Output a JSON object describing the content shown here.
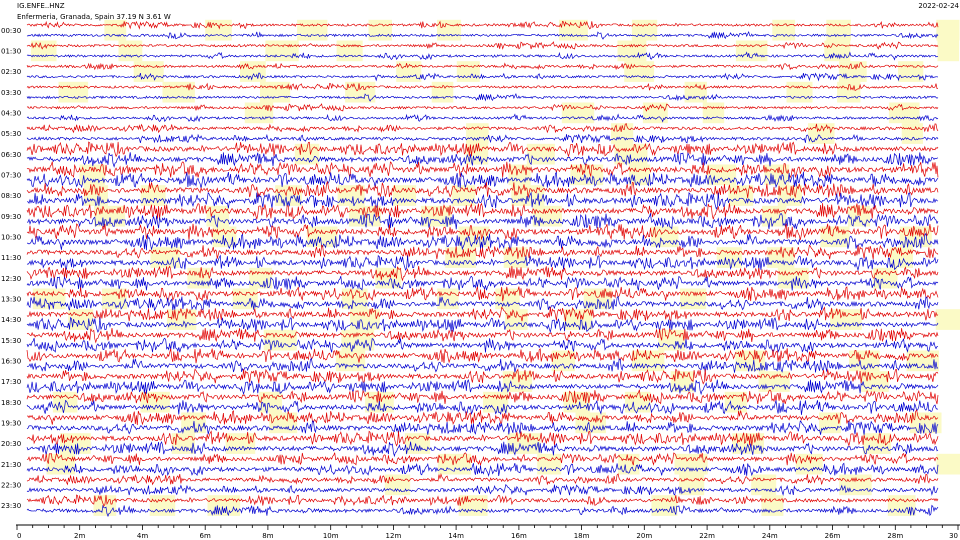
{
  "header": {
    "station": "IG.ENFE..HNZ",
    "location": "Enfermeria, Granada, Spain   37.19 N 3.61 W",
    "date": "2022-02-24"
  },
  "colors": {
    "trace_a": "#e00000",
    "trace_b": "#0000d0",
    "highlight": "#fbfac6"
  },
  "chart_data": {
    "type": "line",
    "title": "IG.ENFE..HNZ",
    "xlabel": "",
    "ylabel": "",
    "x_unit": "minutes",
    "xlim": [
      0,
      30
    ],
    "x_ticks": [
      "0",
      "2m",
      "4m",
      "6m",
      "8m",
      "10m",
      "12m",
      "14m",
      "16m",
      "18m",
      "20m",
      "22m",
      "24m",
      "26m",
      "28m",
      "30"
    ],
    "row_labels": [
      "00:30",
      "01:30",
      "02:30",
      "03:30",
      "04:30",
      "05:30",
      "06:30",
      "07:30",
      "08:30",
      "09:30",
      "10:30",
      "11:30",
      "12:30",
      "13:30",
      "14:30",
      "15:30",
      "16:30",
      "17:30",
      "18:30",
      "19:30",
      "20:30",
      "21:30",
      "22:30",
      "23:30"
    ],
    "traces_per_hour": 2,
    "trace_minutes": 30,
    "series": [
      {
        "color": "red"
      },
      {
        "color": "blue"
      }
    ],
    "activity_by_hour": [
      1,
      1,
      1,
      1,
      1,
      1.5,
      3,
      3.5,
      3.5,
      3.5,
      3.5,
      3,
      3,
      3,
      3,
      3,
      3,
      3,
      3,
      3,
      3,
      2.5,
      2,
      2
    ]
  }
}
